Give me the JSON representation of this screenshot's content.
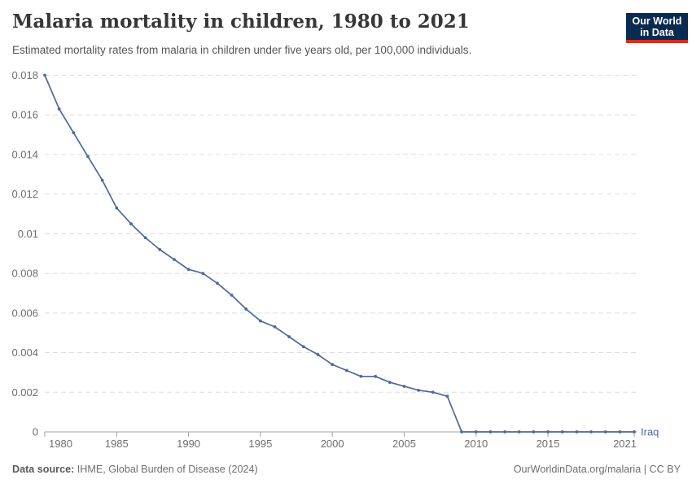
{
  "header": {
    "title": "Malaria mortality in children, 1980 to 2021",
    "subtitle": "Estimated mortality rates from malaria in children under five years old, per 100,000 individuals.",
    "logo": {
      "line1": "Our World",
      "line2": "in Data",
      "bg_color": "#0b2a51",
      "bar_color": "#d3301f"
    }
  },
  "footer": {
    "source_label": "Data source:",
    "source_value": " IHME, Global Burden of Disease (2024)",
    "link": "OurWorldinData.org/malaria | CC BY"
  },
  "chart_data": {
    "type": "line",
    "title": "Malaria mortality in children, 1980 to 2021",
    "xlabel": "",
    "ylabel": "",
    "xlim": [
      1980,
      2021
    ],
    "ylim": [
      0,
      0.018
    ],
    "grid": true,
    "gridline_color": "#dcdcdc",
    "axis_color": "#a1a1a1",
    "tick_label_color": "#6e6e6e",
    "legend_position": "end-of-line label",
    "xticks": [
      1980,
      1985,
      1990,
      1995,
      2000,
      2005,
      2010,
      2015,
      2021
    ],
    "yticks": [
      {
        "v": 0,
        "label": "0"
      },
      {
        "v": 0.002,
        "label": "0.002"
      },
      {
        "v": 0.004,
        "label": "0.004"
      },
      {
        "v": 0.006,
        "label": "0.006"
      },
      {
        "v": 0.008,
        "label": "0.008"
      },
      {
        "v": 0.01,
        "label": "0.01"
      },
      {
        "v": 0.012,
        "label": "0.012"
      },
      {
        "v": 0.014,
        "label": "0.014"
      },
      {
        "v": 0.016,
        "label": "0.016"
      },
      {
        "v": 0.018,
        "label": "0.018"
      }
    ],
    "x": [
      1980,
      1981,
      1982,
      1983,
      1984,
      1985,
      1986,
      1987,
      1988,
      1989,
      1990,
      1991,
      1992,
      1993,
      1994,
      1995,
      1996,
      1997,
      1998,
      1999,
      2000,
      2001,
      2002,
      2003,
      2004,
      2005,
      2006,
      2007,
      2008,
      2009,
      2010,
      2011,
      2012,
      2013,
      2014,
      2015,
      2016,
      2017,
      2018,
      2019,
      2020,
      2021
    ],
    "series": [
      {
        "name": "Iraq",
        "color": "#4C6A9C",
        "values": [
          0.018,
          0.0163,
          0.0151,
          0.0139,
          0.0127,
          0.0113,
          0.0105,
          0.0098,
          0.0092,
          0.0087,
          0.0082,
          0.008,
          0.0075,
          0.0069,
          0.0062,
          0.0056,
          0.0053,
          0.0048,
          0.0043,
          0.0039,
          0.0034,
          0.0031,
          0.0028,
          0.0028,
          0.0025,
          0.0023,
          0.0021,
          0.002,
          0.0018,
          0,
          0,
          0,
          0,
          0,
          0,
          0,
          0,
          0,
          0,
          0,
          0,
          0
        ]
      }
    ]
  }
}
